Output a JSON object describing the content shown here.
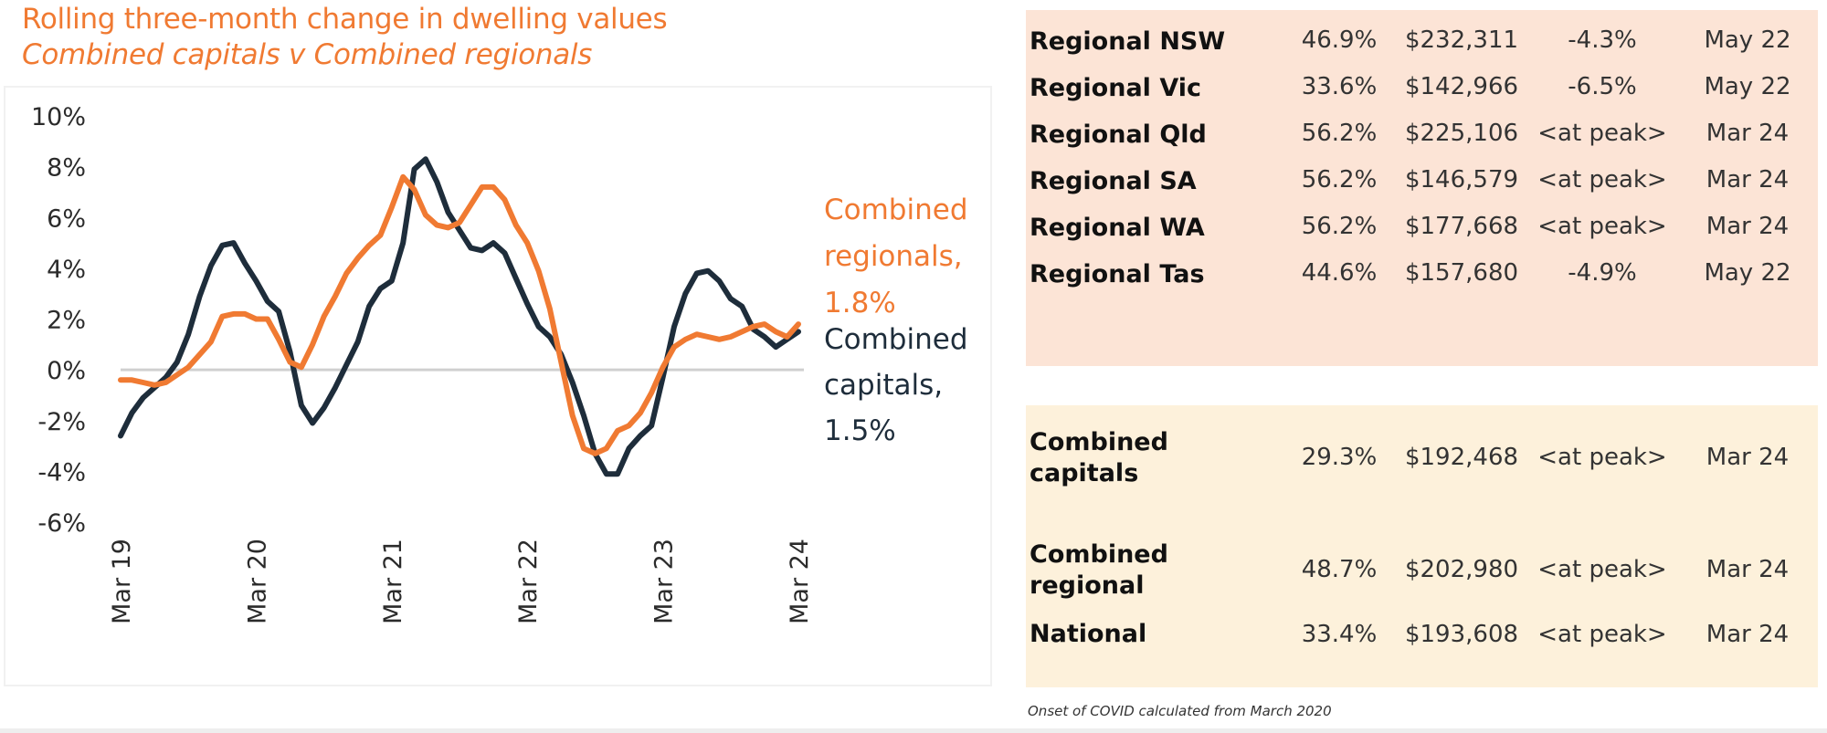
{
  "title": {
    "line1": "Rolling three-month change in dwelling values",
    "line2": "Combined capitals v Combined regionals"
  },
  "colors": {
    "regionals": "#f07a32",
    "capitals": "#1e2d3b",
    "zero_line": "#d0d0d0",
    "regional_panel": "#fce4d6",
    "combined_panel": "#fdf1db"
  },
  "chart_data": {
    "type": "line",
    "title": "Rolling three-month change in dwelling values",
    "subtitle": "Combined capitals v Combined regionals",
    "xlabel": "",
    "ylabel": "",
    "ylim": [
      -6,
      10
    ],
    "yticks": [
      10,
      8,
      6,
      4,
      2,
      0,
      -2,
      -4,
      -6
    ],
    "ytick_labels": [
      "10%",
      "8%",
      "6%",
      "4%",
      "2%",
      "0%",
      "-2%",
      "-4%",
      "-6%"
    ],
    "x_start": "Mar 19",
    "x_step": "month",
    "xtick_labels": [
      "Mar 19",
      "Mar 20",
      "Mar 21",
      "Mar 22",
      "Mar 23",
      "Mar 24"
    ],
    "xtick_index": [
      0,
      12,
      24,
      36,
      48,
      60
    ],
    "grid": false,
    "zero_line": true,
    "series": [
      {
        "name": "Combined regionals",
        "end_label": "Combined regionals, 1.8%",
        "end_label_lines": [
          "Combined",
          "regionals,",
          "1.8%"
        ],
        "values": [
          -0.4,
          -0.4,
          -0.5,
          -0.6,
          -0.5,
          -0.2,
          0.1,
          0.6,
          1.1,
          2.1,
          2.2,
          2.2,
          2.0,
          2.0,
          1.2,
          0.3,
          0.1,
          1.0,
          2.1,
          2.9,
          3.8,
          4.4,
          4.9,
          5.3,
          6.4,
          7.6,
          7.1,
          6.1,
          5.7,
          5.6,
          5.8,
          6.5,
          7.2,
          7.2,
          6.7,
          5.7,
          5.0,
          3.9,
          2.4,
          0.3,
          -1.8,
          -3.1,
          -3.3,
          -3.1,
          -2.4,
          -2.2,
          -1.7,
          -0.9,
          0.1,
          0.9,
          1.2,
          1.4,
          1.3,
          1.2,
          1.3,
          1.5,
          1.7,
          1.8,
          1.5,
          1.3,
          1.8
        ]
      },
      {
        "name": "Combined capitals",
        "end_label": "Combined capitals, 1.5%",
        "end_label_lines": [
          "Combined",
          "capitals,",
          "1.5%"
        ],
        "values": [
          -2.6,
          -1.7,
          -1.1,
          -0.7,
          -0.3,
          0.3,
          1.4,
          2.9,
          4.1,
          4.9,
          5.0,
          4.2,
          3.5,
          2.7,
          2.3,
          0.7,
          -1.4,
          -2.1,
          -1.5,
          -0.7,
          0.2,
          1.1,
          2.5,
          3.2,
          3.5,
          5.0,
          7.9,
          8.3,
          7.4,
          6.2,
          5.5,
          4.8,
          4.7,
          5.0,
          4.6,
          3.6,
          2.6,
          1.7,
          1.3,
          0.6,
          -0.5,
          -1.8,
          -3.3,
          -4.1,
          -4.1,
          -3.1,
          -2.6,
          -2.2,
          -0.3,
          1.7,
          3.0,
          3.8,
          3.9,
          3.5,
          2.8,
          2.5,
          1.6,
          1.3,
          0.9,
          1.2,
          1.5
        ]
      }
    ]
  },
  "regional_table": [
    {
      "name": "Regional NSW",
      "growth": "46.9%",
      "value": "$232,311",
      "change": "-4.3%",
      "date": "May 22"
    },
    {
      "name": "Regional Vic",
      "growth": "33.6%",
      "value": "$142,966",
      "change": "-6.5%",
      "date": "May 22"
    },
    {
      "name": "Regional Qld",
      "growth": "56.2%",
      "value": "$225,106",
      "change": "<at peak>",
      "date": "Mar 24"
    },
    {
      "name": "Regional SA",
      "growth": "56.2%",
      "value": "$146,579",
      "change": "<at peak>",
      "date": "Mar 24"
    },
    {
      "name": "Regional WA",
      "growth": "56.2%",
      "value": "$177,668",
      "change": "<at peak>",
      "date": "Mar 24"
    },
    {
      "name": "Regional Tas",
      "growth": "44.6%",
      "value": "$157,680",
      "change": "-4.9%",
      "date": "May 22"
    }
  ],
  "combined_table": [
    {
      "name_line1": "Combined",
      "name_line2": "capitals",
      "growth": "29.3%",
      "value": "$192,468",
      "change": "<at peak>",
      "date": "Mar 24"
    },
    {
      "name_line1": "Combined",
      "name_line2": "regional",
      "growth": "48.7%",
      "value": "$202,980",
      "change": "<at peak>",
      "date": "Mar 24"
    },
    {
      "name_line1": "National",
      "name_line2": "",
      "growth": "33.4%",
      "value": "$193,608",
      "change": "<at peak>",
      "date": "Mar 24"
    }
  ],
  "footnote": "Onset of COVID calculated from March 2020"
}
